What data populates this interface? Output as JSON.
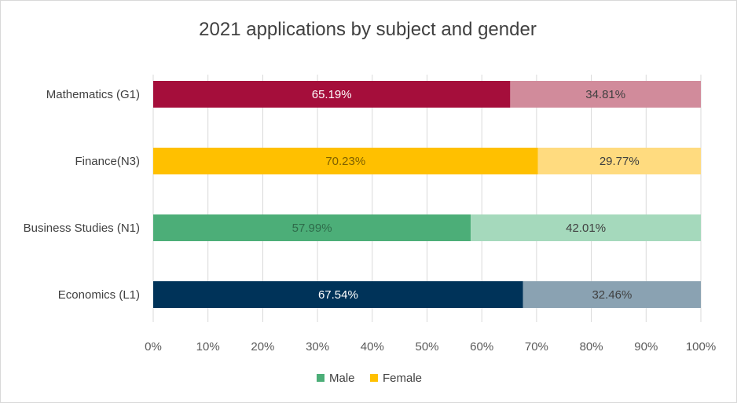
{
  "chart_data": {
    "type": "bar",
    "orientation": "horizontal",
    "stacked": "percent",
    "title": "2021 applications by subject and gender",
    "categories": [
      "Mathematics (G1)",
      "Finance(N3)",
      "Business Studies (N1)",
      "Economics (L1)"
    ],
    "series": [
      {
        "name": "Male",
        "values": [
          65.19,
          70.23,
          57.99,
          67.54
        ],
        "labels": [
          "65.19%",
          "70.23%",
          "57.99%",
          "67.54%"
        ],
        "colors": [
          "#a50e3b",
          "#ffc000",
          "#4cae78",
          "#003359"
        ],
        "label_colors": [
          "#ffffff",
          "#7f6000",
          "#2e6b4a",
          "#ffffff"
        ],
        "legend_color": "#4cae78"
      },
      {
        "name": "Female",
        "values": [
          34.81,
          29.77,
          42.01,
          32.46
        ],
        "labels": [
          "34.81%",
          "29.77%",
          "42.01%",
          "32.46%"
        ],
        "colors": [
          "#d18b9b",
          "#ffdb7f",
          "#a5d9bc",
          "#8aa2b2"
        ],
        "label_colors": [
          "#404040",
          "#404040",
          "#404040",
          "#404040"
        ],
        "legend_color": "#ffc000"
      }
    ],
    "xlim": [
      0,
      100
    ],
    "xticks": [
      "0%",
      "10%",
      "20%",
      "30%",
      "40%",
      "50%",
      "60%",
      "70%",
      "80%",
      "90%",
      "100%"
    ],
    "grid": true,
    "legend_position": "bottom"
  }
}
